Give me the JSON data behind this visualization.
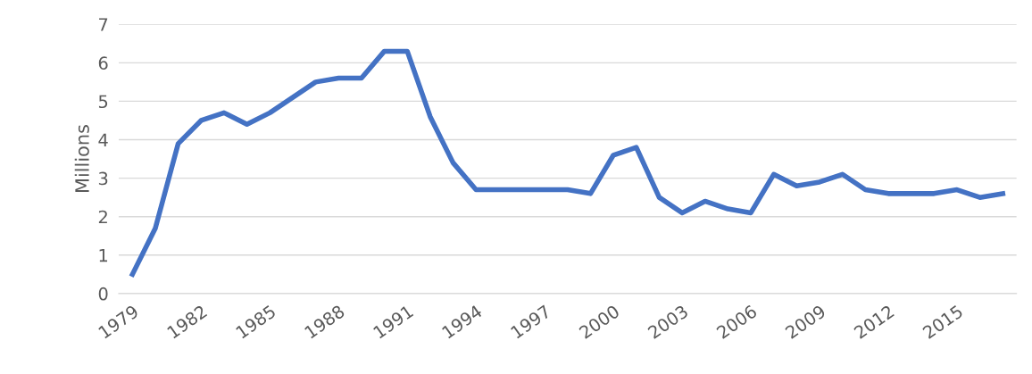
{
  "chart_data": {
    "type": "line",
    "ylabel": "Millions",
    "categories": [
      "1979",
      null,
      null,
      "1982",
      null,
      null,
      "1985",
      null,
      null,
      "1988",
      null,
      null,
      "1991",
      null,
      null,
      "1994",
      null,
      null,
      "1997",
      null,
      null,
      "2000",
      null,
      null,
      "2003",
      null,
      null,
      "2006",
      null,
      null,
      "2009",
      null,
      null,
      "2012",
      null,
      null,
      "2015",
      null,
      null
    ],
    "series": [
      {
        "color": "#4472c4",
        "values": [
          0.5,
          1.7,
          3.9,
          4.5,
          4.7,
          4.4,
          4.7,
          5.1,
          5.5,
          5.6,
          5.6,
          6.3,
          6.3,
          4.6,
          3.4,
          2.7,
          2.7,
          2.7,
          2.7,
          2.7,
          2.6,
          3.6,
          3.8,
          2.5,
          2.1,
          2.4,
          2.2,
          2.1,
          3.1,
          2.8,
          2.9,
          3.1,
          2.7,
          2.6,
          2.6,
          2.6,
          2.7,
          2.5,
          2.6
        ]
      }
    ],
    "ylim": [
      0,
      7
    ],
    "yticks": [
      0,
      1,
      2,
      3,
      4,
      5,
      6,
      7
    ],
    "grid": "y",
    "legend": false,
    "marker": "none",
    "line_style": "solid"
  }
}
